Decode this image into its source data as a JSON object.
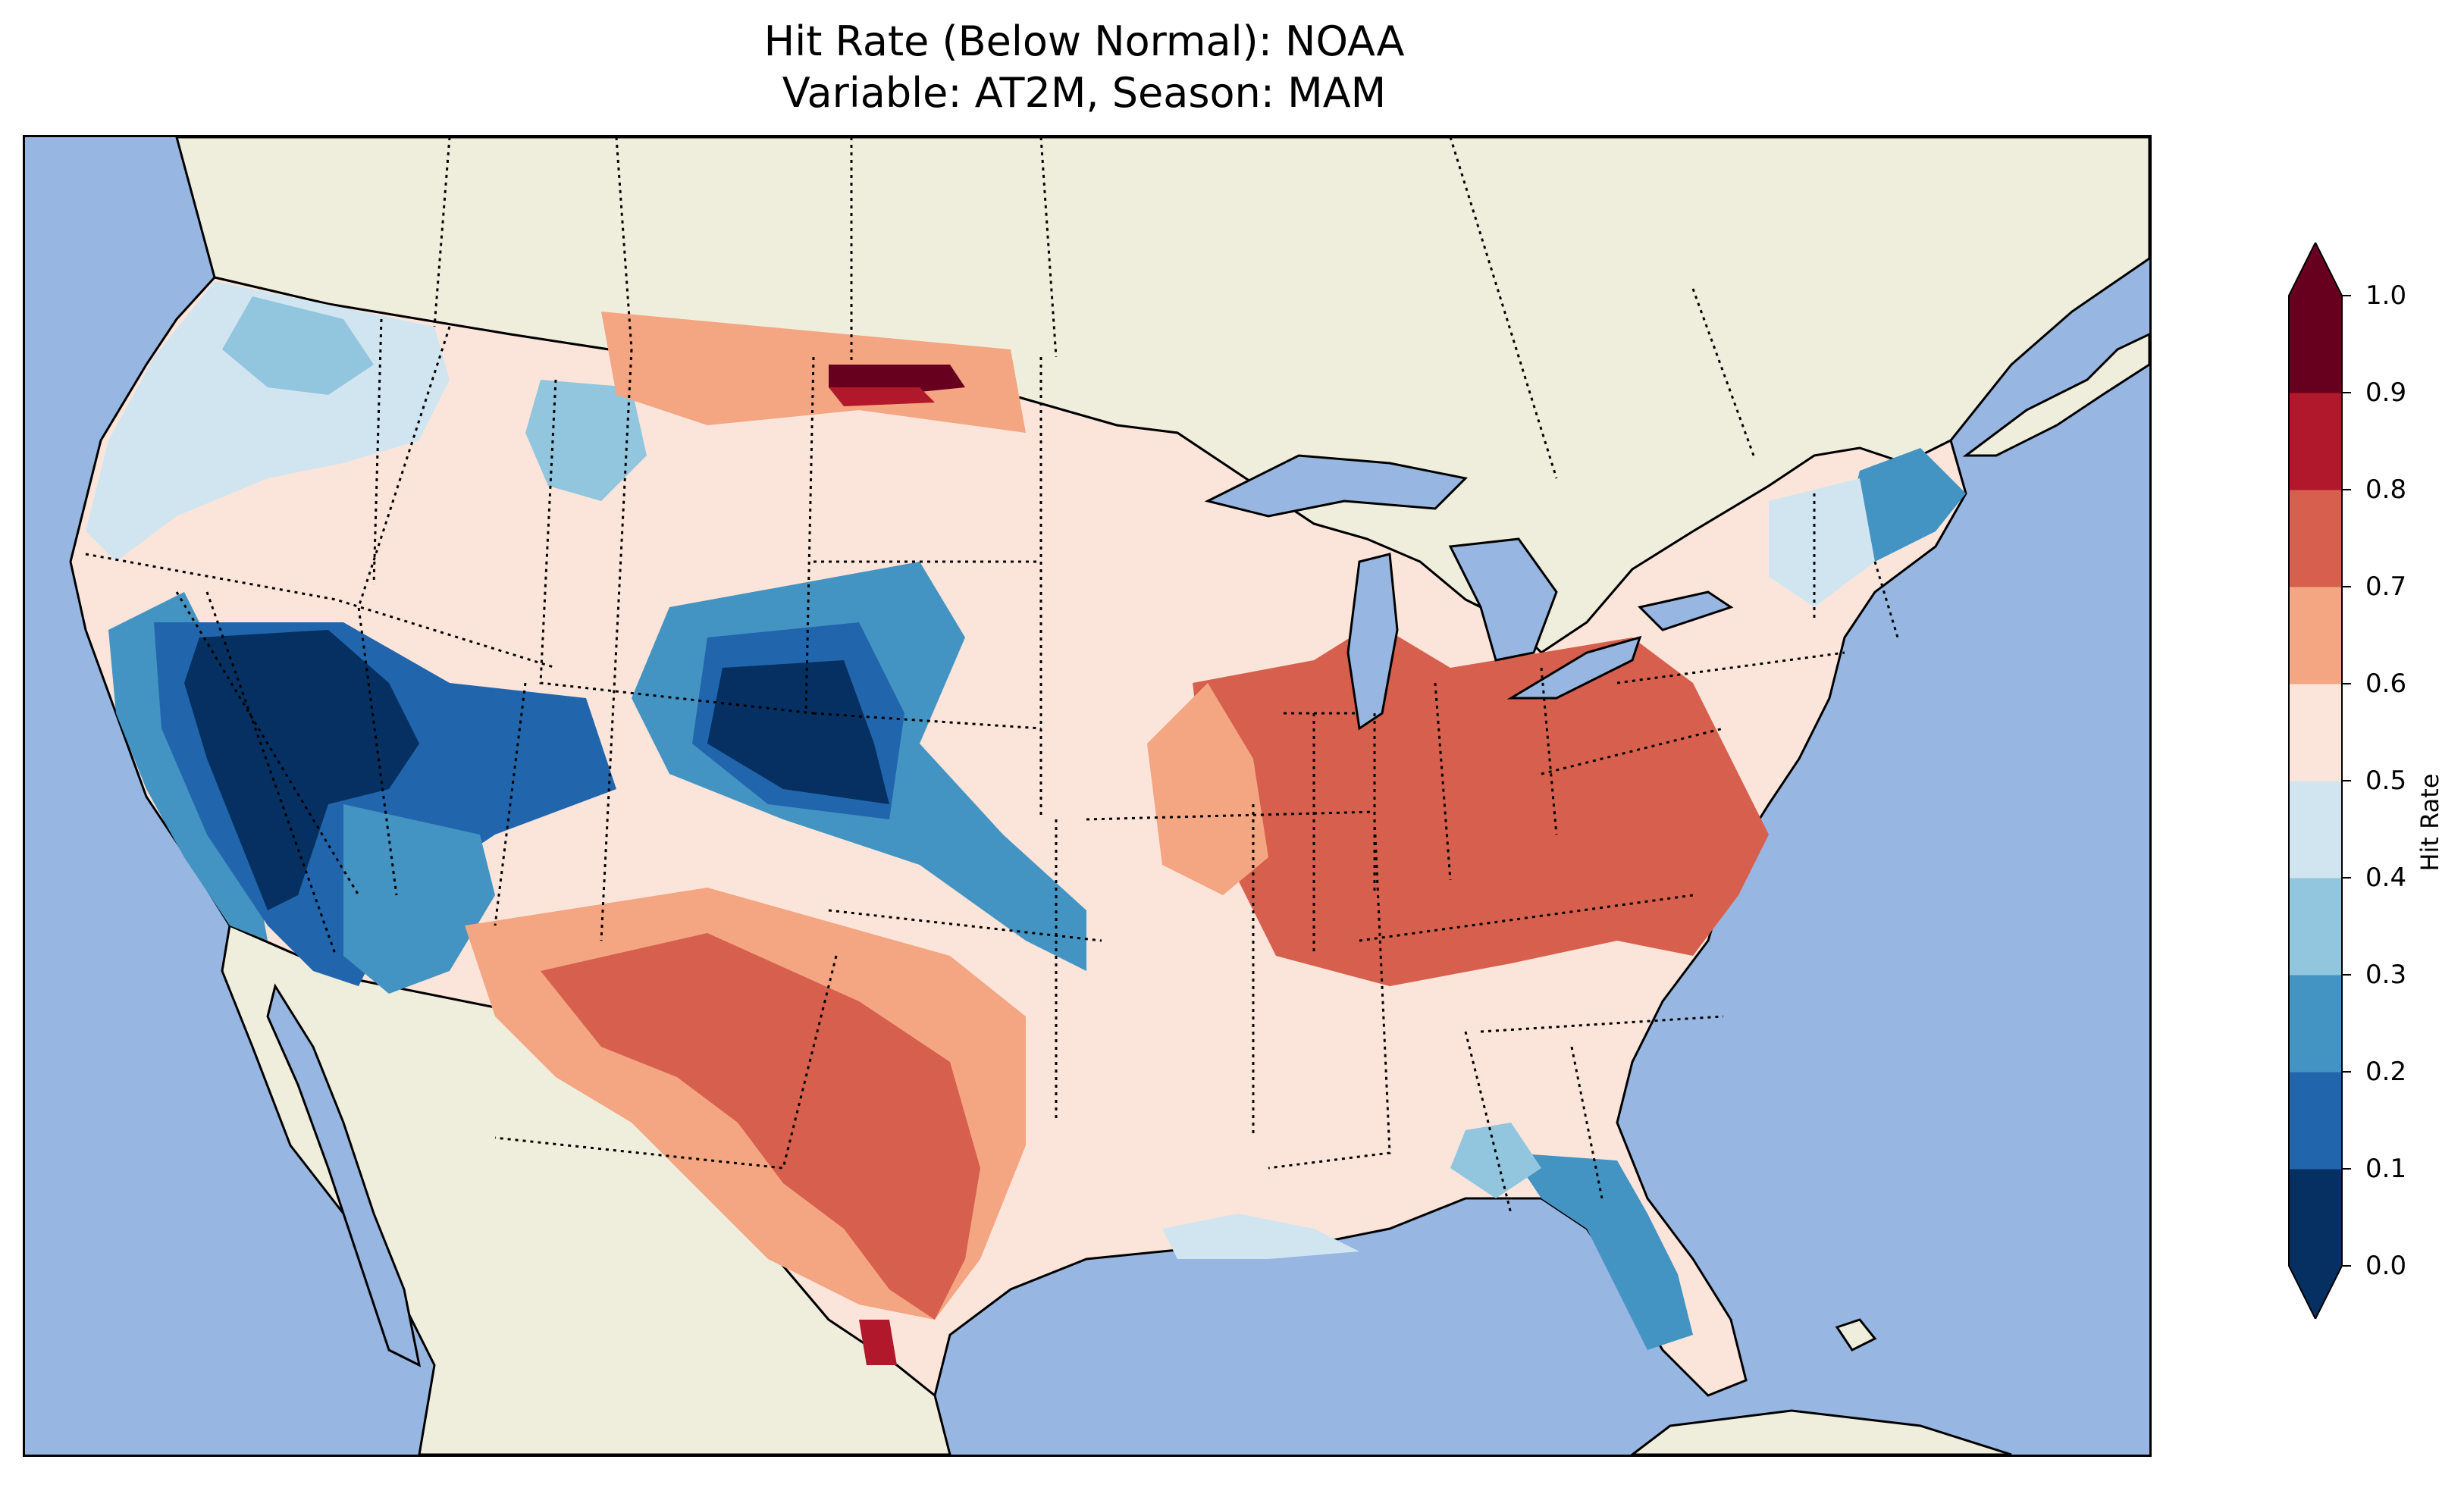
{
  "title": {
    "line1": "Hit Rate (Below Normal): NOAA",
    "line2": "Variable: AT2M, Season: MAM"
  },
  "colors": {
    "ocean": "#97b6e1",
    "land": "#efeedd"
  },
  "colorbar": {
    "label": "Hit Rate",
    "extend": "both",
    "ticks": [
      "0.0",
      "0.1",
      "0.2",
      "0.3",
      "0.4",
      "0.5",
      "0.6",
      "0.7",
      "0.8",
      "0.9",
      "1.0"
    ],
    "levels": [
      {
        "range": "0.0-0.1",
        "color": "#053061"
      },
      {
        "range": "0.1-0.2",
        "color": "#2166ac"
      },
      {
        "range": "0.2-0.3",
        "color": "#4393c3"
      },
      {
        "range": "0.3-0.4",
        "color": "#92c5de"
      },
      {
        "range": "0.4-0.5",
        "color": "#d1e5f0"
      },
      {
        "range": "0.5-0.6",
        "color": "#fbe5db"
      },
      {
        "range": "0.6-0.7",
        "color": "#f4a582"
      },
      {
        "range": "0.7-0.8",
        "color": "#d6604d"
      },
      {
        "range": "0.8-0.9",
        "color": "#b2182b"
      },
      {
        "range": "0.9-1.0",
        "color": "#67001f"
      }
    ]
  },
  "regions": [
    {
      "name": "pacific-northwest",
      "value": 0.45
    },
    {
      "name": "great-basin",
      "value": 0.05
    },
    {
      "name": "colorado-wyoming",
      "value": 0.05
    },
    {
      "name": "northern-plains",
      "value": 0.55
    },
    {
      "name": "north-dakota-border",
      "value": 0.95
    },
    {
      "name": "southern-plains-texas",
      "value": 0.75
    },
    {
      "name": "south-texas",
      "value": 0.85
    },
    {
      "name": "ohio-valley",
      "value": 0.75
    },
    {
      "name": "carolinas",
      "value": 0.75
    },
    {
      "name": "florida",
      "value": 0.25
    },
    {
      "name": "maine",
      "value": 0.25
    }
  ]
}
